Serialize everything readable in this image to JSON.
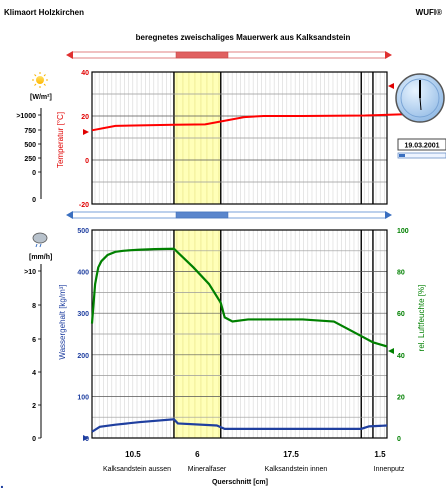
{
  "header": {
    "left": "Klimaort Holzkirchen",
    "center": "beregnetes zweischaliges Mauerwerk aus Kalksandstein",
    "right": "WUFI®"
  },
  "clock": {
    "date": "19.03.2001"
  },
  "chart_data": [
    {
      "type": "line",
      "title": "beregnetes zweischaliges Mauerwerk aus Kalksandstein",
      "ylabel": "Temperatur [°C]",
      "ylim": [
        -20,
        40
      ],
      "yticks": [
        "40",
        "20",
        "0",
        "-20"
      ],
      "left_axis": {
        "unit": "[W/m²]",
        "ticks": [
          ">1000",
          "750",
          "500",
          "250",
          "0"
        ]
      },
      "grid": true,
      "series": [
        {
          "color": "#ff0000",
          "x": [
            0,
            3,
            10.5,
            14.5,
            19.5,
            22,
            27,
            35,
            40
          ],
          "y": [
            13.5,
            15.5,
            16.0,
            16.2,
            19.5,
            20.0,
            20.0,
            20.2,
            20.8
          ]
        }
      ]
    },
    {
      "type": "line",
      "xlabel": "Querschnitt [cm]",
      "xticks": [
        "10.5",
        "6",
        "17.5",
        "1.5"
      ],
      "layers": [
        "Kalksandstein aussen",
        "Mineralfaser",
        "Kalksandstein innen",
        "Innenputz"
      ],
      "left_ylabel": "Wassergehalt [kg/m³]",
      "left_ylim": [
        0,
        500
      ],
      "left_yticks": [
        "500",
        "400",
        "300",
        "200",
        "100",
        "0"
      ],
      "right_ylabel": "rel. Luftfeuchte [%]",
      "right_ylim": [
        0,
        100
      ],
      "right_yticks": [
        "100",
        "80",
        "60",
        "40",
        "20",
        "0"
      ],
      "rain_axis": {
        "unit": "[mm/h]",
        "ticks": [
          ">10",
          "8",
          "6",
          "4",
          "2",
          "0"
        ]
      },
      "grid": true,
      "series": [
        {
          "axis": "right",
          "color": "#008000",
          "x": [
            0,
            0.4,
            0.8,
            1.2,
            2,
            3,
            4,
            5,
            6,
            8,
            10.5,
            13,
            15,
            16.5,
            17,
            18,
            20,
            23,
            27,
            31,
            34.5,
            36,
            37.8
          ],
          "y": [
            55,
            74,
            82,
            85,
            88,
            89.5,
            90,
            90.3,
            90.5,
            90.8,
            91,
            82,
            74,
            65,
            58,
            56,
            57,
            57,
            57,
            56,
            49,
            46,
            44
          ]
        },
        {
          "axis": "left",
          "color": "#1f3f9f",
          "x": [
            0,
            1,
            3,
            6,
            10.5,
            11,
            16,
            17,
            20,
            27,
            34.5,
            35.5,
            37.8
          ],
          "y": [
            15,
            27,
            32,
            38,
            45,
            35,
            30,
            22,
            22,
            22,
            22,
            28,
            30
          ]
        }
      ]
    }
  ]
}
